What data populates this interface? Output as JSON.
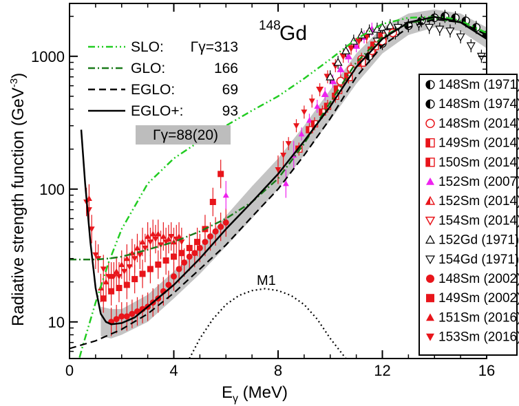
{
  "chart_data": {
    "type": "line",
    "title_mass": "148",
    "title_element": "Gd",
    "xlabel_main": "E",
    "xlabel_sub": "γ",
    "xlabel_unit": " (MeV)",
    "ylabel": "Radiative strength function (GeV",
    "ylabel_exp": "-3",
    "ylabel_close": ")",
    "xlim": [
      0,
      16
    ],
    "ylim": [
      5.3,
      2500
    ],
    "yscale": "log",
    "x_ticks": [
      0,
      4,
      8,
      12,
      16
    ],
    "x_tick_labels": [
      "0",
      "4",
      "8",
      "12",
      "16"
    ],
    "y_ticks": [
      10,
      100,
      1000
    ],
    "y_tick_labels": [
      "10",
      "100",
      "1000"
    ],
    "m1_label": "M1",
    "model_legend": [
      {
        "name": "SLO:",
        "value": "Γγ=313",
        "color": "#22cc22",
        "dash": "10,4,2,4,2,4"
      },
      {
        "name": "GLO:",
        "value": "166",
        "color": "#1a7a1a",
        "dash": "10,4,2,4"
      },
      {
        "name": "EGLO:",
        "value": "69",
        "color": "#000000",
        "dash": "10,6"
      },
      {
        "name": "EGLO+:",
        "value": "93",
        "color": "#000000",
        "dash": ""
      }
    ],
    "band_label": "Γγ=88(20)",
    "series": [
      {
        "name": "SLO",
        "x": [
          0.2,
          0.5,
          1,
          1.5,
          2,
          3,
          4,
          5,
          6,
          7,
          8,
          9,
          10,
          11,
          12,
          13,
          14,
          14.5,
          15,
          16
        ],
        "y": [
          4,
          6.5,
          14,
          28,
          50,
          110,
          170,
          230,
          300,
          390,
          500,
          680,
          950,
          1350,
          1750,
          1950,
          1980,
          1950,
          1850,
          1500
        ]
      },
      {
        "name": "GLO",
        "x": [
          0,
          0.5,
          1,
          1.5,
          2,
          3,
          4,
          5,
          6,
          7,
          8,
          9,
          10,
          11,
          12,
          13,
          14,
          15,
          16
        ],
        "y": [
          29.5,
          29.5,
          29.5,
          30,
          31,
          35,
          40,
          48,
          60,
          80,
          120,
          220,
          450,
          900,
          1400,
          1780,
          1920,
          1800,
          1450
        ]
      },
      {
        "name": "EGLO",
        "x": [
          0,
          1,
          2,
          3,
          4,
          5,
          6,
          7,
          8,
          9,
          10,
          11,
          12,
          13,
          14,
          15,
          16
        ],
        "y": [
          6.3,
          7.2,
          8.8,
          11.5,
          16.5,
          25,
          38,
          62,
          100,
          180,
          340,
          700,
          1200,
          1650,
          1900,
          1800,
          1450
        ]
      },
      {
        "name": "EGLO+",
        "x": [
          0.45,
          0.6,
          0.8,
          1,
          1.2,
          1.4,
          1.6,
          2,
          2.5,
          3,
          4,
          5,
          6,
          7,
          8,
          9,
          10,
          11,
          12,
          13,
          14,
          15,
          16
        ],
        "y": [
          280,
          110,
          40,
          18,
          11.5,
          10,
          9.6,
          9.8,
          10.8,
          13,
          19,
          30,
          50,
          80,
          130,
          230,
          420,
          830,
          1350,
          1800,
          1980,
          1800,
          1350
        ]
      },
      {
        "name": "M1",
        "x": [
          4.6,
          5,
          5.5,
          6,
          6.5,
          7,
          7.5,
          8,
          8.5,
          9,
          9.5,
          10,
          10.6
        ],
        "y": [
          5.3,
          7.5,
          10.5,
          13.5,
          15.8,
          17.2,
          17.8,
          17.2,
          15.8,
          13.5,
          10.5,
          7.5,
          5.3
        ]
      }
    ],
    "band": {
      "x": [
        1.2,
        1.6,
        2,
        3,
        4,
        5,
        6,
        7,
        8,
        9,
        10,
        11,
        12,
        13,
        14,
        15,
        16
      ],
      "y_low": [
        7.8,
        7.5,
        8,
        10,
        15,
        23,
        37,
        60,
        100,
        180,
        330,
        620,
        1050,
        1450,
        1650,
        1550,
        1150
      ],
      "y_high": [
        13,
        12.5,
        12.5,
        16,
        24,
        37,
        63,
        105,
        170,
        300,
        560,
        1050,
        1650,
        2100,
        2250,
        2100,
        1650
      ]
    },
    "data_legend": [
      {
        "label": "148Sm (1971)",
        "marker": "half-circle-dark"
      },
      {
        "label": "148Sm (1974)",
        "marker": "half-circle-dark-2"
      },
      {
        "label": "148Sm (2014)",
        "marker": "circle-open-red"
      },
      {
        "label": "149Sm (2014)",
        "marker": "square-half-red"
      },
      {
        "label": "150Sm (2014)",
        "marker": "square-half-red-2"
      },
      {
        "label": "152Sm (2007)",
        "marker": "triangle-up-magenta"
      },
      {
        "label": "152Sm (2014)",
        "marker": "triangle-up-half-red"
      },
      {
        "label": "154Sm (2014)",
        "marker": "triangle-down-open-red"
      },
      {
        "label": "152Gd (1971)",
        "marker": "triangle-up-open-black"
      },
      {
        "label": "154Gd (1971)",
        "marker": "triangle-down-open-black"
      },
      {
        "label": "148Sm (2002)",
        "marker": "circle-filled-red"
      },
      {
        "label": "149Sm (2002)",
        "marker": "square-filled-red"
      },
      {
        "label": "151Sm (2016)",
        "marker": "triangle-up-filled-red"
      },
      {
        "label": "153Sm (2016)",
        "marker": "triangle-down-filled-red"
      }
    ],
    "points": [
      {
        "s": "triangle-down-filled-red",
        "x": [
          0.65,
          0.75,
          0.85,
          1.0,
          1.1,
          1.3,
          1.5,
          1.7,
          1.9,
          2.1,
          2.3,
          2.5,
          2.7,
          2.9,
          3.1,
          3.3,
          3.5,
          3.7,
          3.9,
          4.1,
          4.3
        ],
        "y": [
          80,
          70,
          50,
          32,
          30,
          25,
          22,
          22,
          22,
          24,
          26,
          30,
          32,
          36,
          40,
          42,
          38,
          40,
          44,
          42,
          40
        ]
      },
      {
        "s": "triangle-up-filled-red",
        "x": [
          0.75,
          1.2,
          1.4,
          1.6,
          1.8,
          2.0,
          2.2,
          2.4,
          2.6,
          2.8,
          3.0,
          3.2,
          3.4,
          3.6,
          3.8,
          4.0,
          4.2
        ],
        "y": [
          85,
          18,
          20,
          22,
          24,
          27,
          30,
          33,
          36,
          40,
          44,
          46,
          46,
          44,
          42,
          40,
          44
        ]
      },
      {
        "s": "square-filled-red",
        "x": [
          1.3,
          1.6,
          1.9,
          2.2,
          2.5,
          2.8,
          3.1,
          3.4,
          3.7,
          4.0,
          4.3,
          4.6,
          4.9,
          5.2,
          5.5,
          5.8
        ],
        "y": [
          15,
          17,
          18,
          19,
          21,
          23,
          25,
          27,
          29,
          31,
          33,
          36,
          40,
          50,
          80,
          130
        ]
      },
      {
        "s": "circle-filled-red",
        "x": [
          1.6,
          1.8,
          2.0,
          2.2,
          2.4,
          2.6,
          2.8,
          3.0,
          3.2,
          3.4,
          3.6,
          3.8,
          4.0,
          4.2,
          4.4,
          4.6,
          4.8,
          5.0,
          5.2,
          5.4,
          5.6,
          5.8,
          6.0
        ],
        "y": [
          10,
          10.5,
          11,
          11,
          11.5,
          12,
          12.5,
          13,
          14,
          15,
          17,
          19,
          22,
          25,
          28,
          31,
          33,
          36,
          40,
          44,
          48,
          52,
          56
        ]
      },
      {
        "s": "triangle-up-magenta",
        "x": [
          6.0,
          8.3,
          8.6,
          8.9,
          9.2,
          9.5,
          9.8,
          10.1,
          10.4,
          10.7,
          11.0,
          11.3,
          11.6
        ],
        "y": [
          90,
          110,
          180,
          260,
          330,
          420,
          520,
          650,
          800,
          1000,
          1200,
          1400,
          1600
        ]
      },
      {
        "s": "triangle-down-filled-red",
        "x": [
          8.0,
          8.2,
          8.4,
          8.7,
          9.0,
          9.3,
          9.6,
          9.9,
          10.2,
          10.5,
          10.8,
          11.1,
          11.4
        ],
        "y": [
          140,
          180,
          220,
          300,
          380,
          460,
          560,
          700,
          850,
          1000,
          1150,
          1300,
          1400
        ]
      },
      {
        "s": "square-half-red",
        "x": [
          8.8,
          9.4,
          9.9,
          10.3,
          10.7,
          11.2,
          11.6,
          12.0
        ],
        "y": [
          200,
          310,
          420,
          560,
          700,
          900,
          1100,
          1400
        ]
      },
      {
        "s": "triangle-up-open-black",
        "x": [
          10.0,
          10.3,
          10.6,
          10.9,
          11.2,
          11.5,
          11.8,
          12.0,
          12.3
        ],
        "y": [
          700,
          900,
          1100,
          1300,
          1450,
          1550,
          1600,
          1650,
          1700
        ]
      },
      {
        "s": "triangle-down-open-black",
        "x": [
          11.8,
          12.2,
          12.6,
          13.0,
          13.4,
          13.8,
          14.2,
          14.6,
          15.0,
          15.4,
          15.8
        ],
        "y": [
          1300,
          1500,
          1650,
          1700,
          1750,
          1650,
          1600,
          1550,
          1400,
          1200,
          1000
        ]
      },
      {
        "s": "half-circle-dark",
        "x": [
          11.5,
          12.0,
          12.5,
          13.0,
          13.5,
          14.0,
          14.4,
          14.8,
          15.2,
          15.6,
          16.0
        ],
        "y": [
          1000,
          1250,
          1500,
          1700,
          1850,
          1950,
          2000,
          1950,
          1850,
          1650,
          1450
        ]
      },
      {
        "s": "circle-open-red",
        "x": [
          10.4,
          10.8,
          11.2,
          11.6,
          12.0,
          12.4
        ],
        "y": [
          650,
          800,
          950,
          1100,
          1300,
          1500
        ]
      },
      {
        "s": "square-half-red-2",
        "x": [
          9.2,
          9.7,
          10.2,
          10.7,
          11.2,
          11.7
        ],
        "y": [
          280,
          380,
          500,
          700,
          900,
          1200
        ]
      }
    ]
  }
}
